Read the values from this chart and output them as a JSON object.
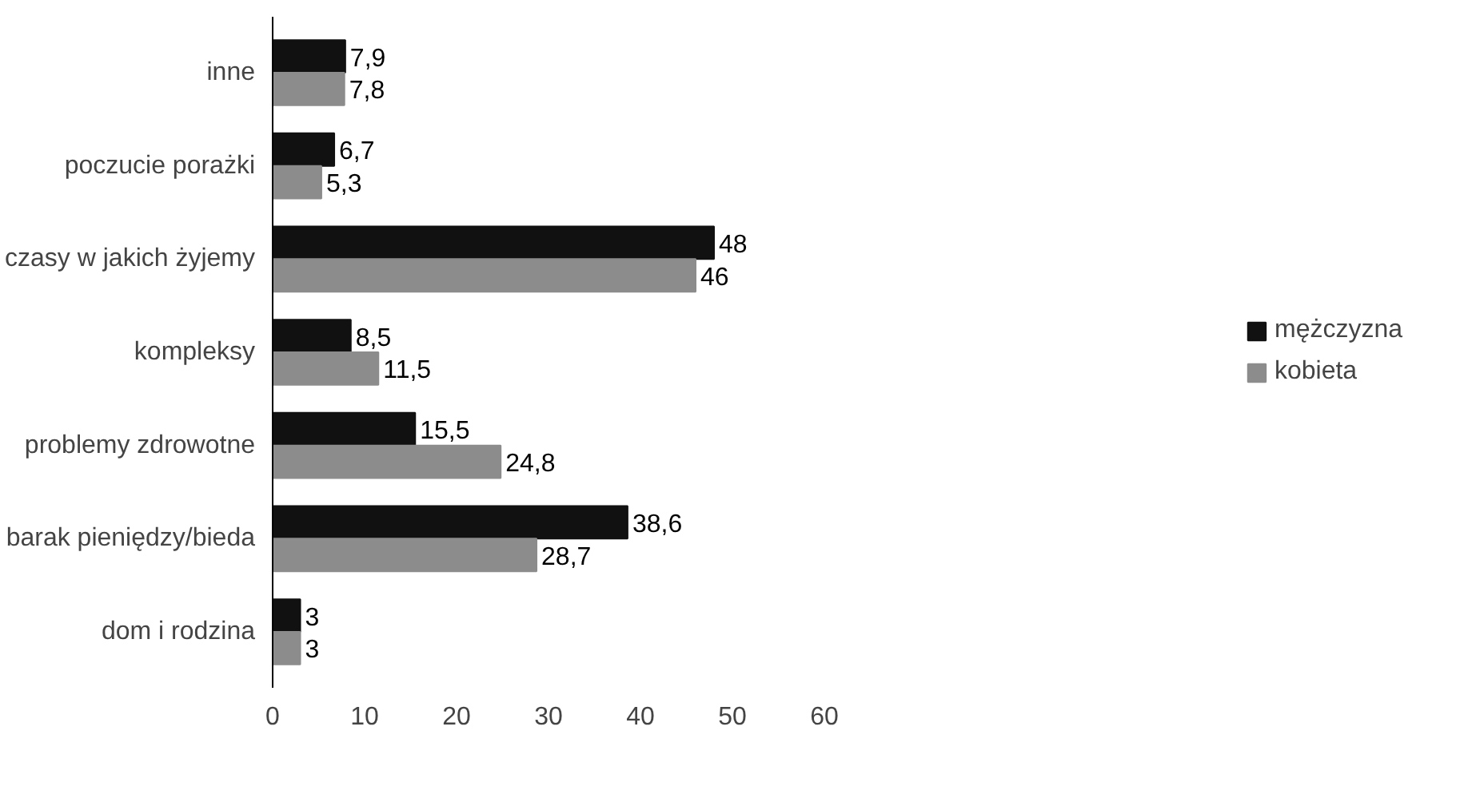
{
  "chart_data": {
    "type": "bar",
    "orientation": "horizontal",
    "categories": [
      "inne",
      "poczucie porażki",
      "czasy w jakich żyjemy",
      "kompleksy",
      "problemy zdrowotne",
      "barak pieniędzy/bieda",
      "dom i rodzina"
    ],
    "series": [
      {
        "name": "mężczyzna",
        "color": "#111111",
        "values": [
          7.9,
          6.7,
          48,
          8.5,
          15.5,
          38.6,
          3
        ],
        "value_labels": [
          "7,9",
          "6,7",
          "48",
          "8,5",
          "15,5",
          "38,6",
          "3"
        ]
      },
      {
        "name": "kobieta",
        "color": "#8c8c8c",
        "values": [
          7.8,
          5.3,
          46,
          11.5,
          24.8,
          28.7,
          3
        ],
        "value_labels": [
          "7,8",
          "5,3",
          "46",
          "11,5",
          "24,8",
          "28,7",
          "3"
        ]
      }
    ],
    "xlim": [
      0,
      60
    ],
    "xticks": [
      0,
      10,
      20,
      30,
      40,
      50,
      60
    ],
    "grid": false,
    "legend": "right"
  }
}
